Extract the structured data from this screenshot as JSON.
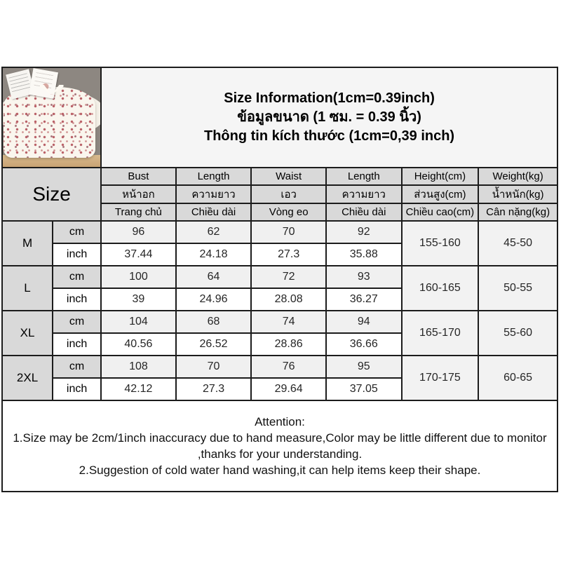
{
  "title": {
    "lines": [
      "Size Information(1cm=0.39inch)",
      "ข้อมูลขนาด (1 ซม. = 0.39 นิ้ว)",
      "Thông tin kích thước (1cm=0,39 inch)"
    ]
  },
  "photo": {
    "description": "floral-print-pajama-top-photo"
  },
  "table": {
    "size_header": "Size",
    "unit_cm": "cm",
    "unit_inch": "inch",
    "columns": [
      {
        "en": "Bust",
        "th": "หน้าอก",
        "vi": "Trang chủ"
      },
      {
        "en": "Length",
        "th": "ความยาว",
        "vi": "Chiều dài"
      },
      {
        "en": "Waist",
        "th": "เอว",
        "vi": "Vòng eo"
      },
      {
        "en": "Length",
        "th": "ความยาว",
        "vi": "Chiều dài"
      },
      {
        "en": "Height(cm)",
        "th": "ส่วนสูง(cm)",
        "vi": "Chiều cao(cm)"
      },
      {
        "en": "Weight(kg)",
        "th": "น้ำหนัก(kg)",
        "vi": "Cân nặng(kg)"
      }
    ],
    "rows": [
      {
        "size": "M",
        "cm": [
          "96",
          "62",
          "70",
          "92"
        ],
        "inch": [
          "37.44",
          "24.18",
          "27.3",
          "35.88"
        ],
        "height": "155-160",
        "weight": "45-50"
      },
      {
        "size": "L",
        "cm": [
          "100",
          "64",
          "72",
          "93"
        ],
        "inch": [
          "39",
          "24.96",
          "28.08",
          "36.27"
        ],
        "height": "160-165",
        "weight": "50-55"
      },
      {
        "size": "XL",
        "cm": [
          "104",
          "68",
          "74",
          "94"
        ],
        "inch": [
          "40.56",
          "26.52",
          "28.86",
          "36.66"
        ],
        "height": "165-170",
        "weight": "55-60"
      },
      {
        "size": "2XL",
        "cm": [
          "108",
          "70",
          "76",
          "95"
        ],
        "inch": [
          "42.12",
          "27.3",
          "29.64",
          "37.05"
        ],
        "height": "170-175",
        "weight": "60-65"
      }
    ]
  },
  "attention": {
    "lines": [
      "Attention:",
      "1.Size may be 2cm/1inch inaccuracy due to hand measure,Color may be little different due to monitor ,thanks for your understanding.",
      "2.Suggestion of cold water hand washing,it can help items keep their shape."
    ]
  }
}
